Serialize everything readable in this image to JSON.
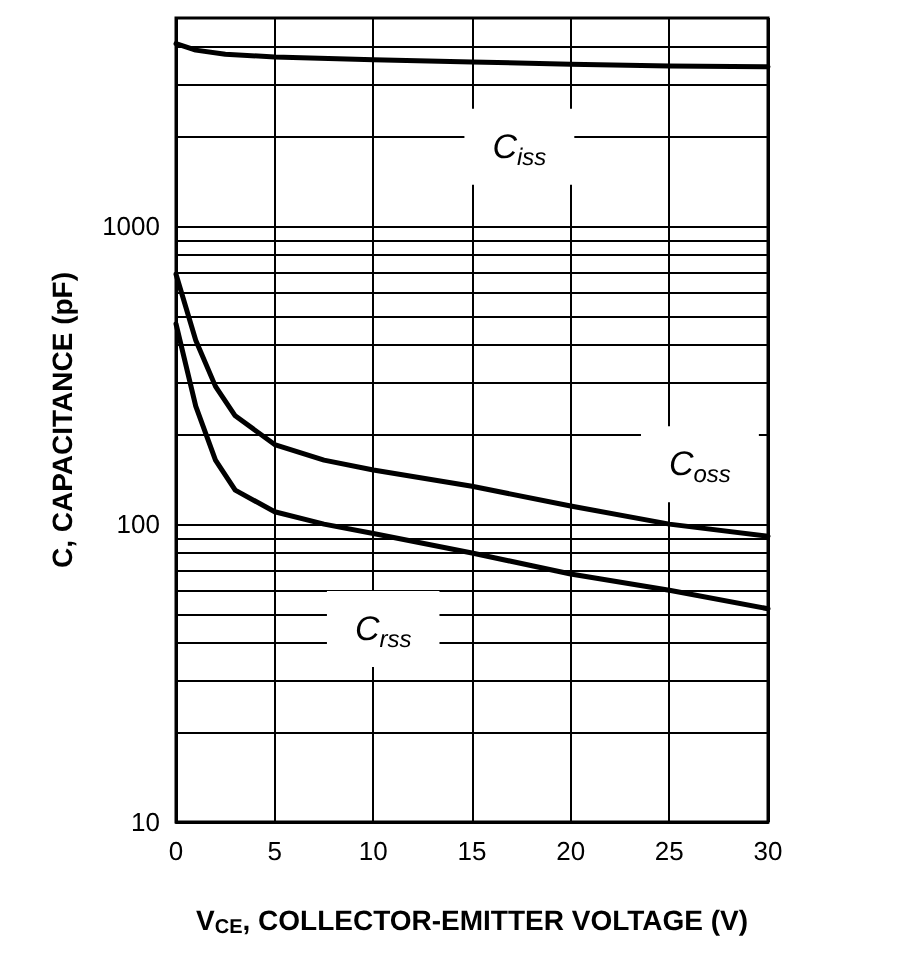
{
  "chart_data": {
    "type": "line",
    "xlabel": "V$_{CE}$, COLLECTOR-EMITTER VOLTAGE (V)",
    "ylabel": "C, CAPACITANCE (pF)",
    "log": "y",
    "grid": true,
    "marker": "none",
    "line_style": "solid",
    "xlim": [
      0,
      30
    ],
    "xticks": [
      0,
      5,
      10,
      15,
      20,
      25,
      30
    ],
    "ylim": [
      10,
      5000
    ],
    "yticks": [
      10,
      {
        "value": 20,
        "label": null
      },
      {
        "value": 30,
        "label": null
      },
      {
        "value": 40,
        "label": null
      },
      {
        "value": 50,
        "label": null
      },
      {
        "value": 60,
        "label": null
      },
      {
        "value": 70,
        "label": null
      },
      {
        "value": 80,
        "label": null
      },
      {
        "value": 90,
        "label": null
      },
      100,
      {
        "value": 200,
        "label": null
      },
      {
        "value": 300,
        "label": null
      },
      {
        "value": 400,
        "label": null
      },
      {
        "value": 500,
        "label": null
      },
      {
        "value": 600,
        "label": null
      },
      {
        "value": 700,
        "label": null
      },
      {
        "value": 800,
        "label": null
      },
      {
        "value": 900,
        "label": null
      },
      1000,
      {
        "value": 2000,
        "label": null
      },
      {
        "value": 3000,
        "label": null
      },
      {
        "value": 4000,
        "label": null
      }
    ],
    "series": [
      {
        "color": "#000000",
        "x": [
          0,
          1,
          2.5,
          5,
          10,
          15,
          20,
          25,
          30
        ],
        "values": [
          4100,
          3900,
          3780,
          3700,
          3620,
          3560,
          3500,
          3450,
          3430
        ]
      },
      {
        "color": "#000000",
        "x": [
          0,
          1,
          2,
          3,
          5,
          7.5,
          10,
          15,
          20,
          25,
          30
        ],
        "values": [
          690,
          414,
          290,
          231,
          185,
          164,
          152,
          134,
          115,
          100,
          91
        ]
      },
      {
        "color": "#000000",
        "x": [
          0,
          1,
          2,
          3,
          5,
          7.5,
          10,
          15,
          20,
          25,
          30
        ],
        "values": [
          470,
          249,
          164,
          130,
          110,
          100,
          93,
          80,
          68,
          60,
          52
        ]
      }
    ],
    "annotations": [
      "C$_{iss}$",
      "C$_{oss}$",
      "C$_{rss}$"
    ]
  }
}
